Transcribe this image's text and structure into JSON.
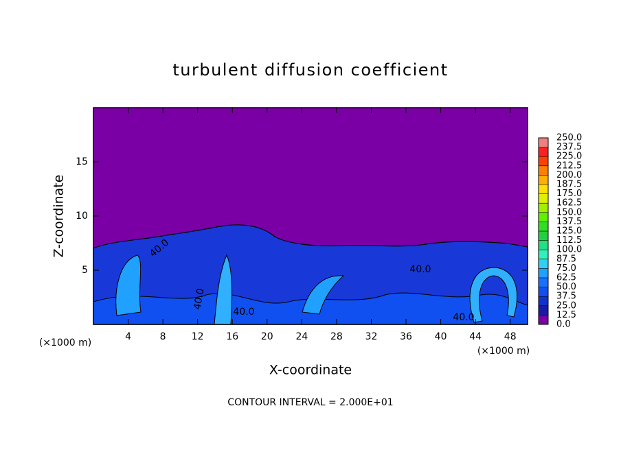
{
  "chart_data": {
    "type": "contour",
    "title": "turbulent diffusion coefficient",
    "x_label": "X-coordinate",
    "y_label": "Z-coordinate",
    "x_unit": "(×1000 m)",
    "x_unit_right": "(×1000 m)",
    "footer": "CONTOUR INTERVAL = 2.000E+01",
    "contour_labels": [
      "40.0",
      "40.0",
      "40.0",
      "40.0",
      "40.0"
    ],
    "xlim": [
      0,
      50
    ],
    "ylim": [
      0,
      20
    ],
    "xticks": [
      4,
      8,
      12,
      16,
      20,
      24,
      28,
      32,
      36,
      40,
      44,
      48
    ],
    "yticks": [
      5,
      10,
      15
    ],
    "levels": [
      {
        "value": 0,
        "label": "0.0"
      },
      {
        "value": 12.5,
        "label": "12.5"
      },
      {
        "value": 25,
        "label": "25.0"
      },
      {
        "value": 37.5,
        "label": "37.5"
      },
      {
        "value": 50,
        "label": "50.0"
      },
      {
        "value": 62.5,
        "label": "62.5"
      },
      {
        "value": 75,
        "label": "75.0"
      },
      {
        "value": 87.5,
        "label": "87.5"
      },
      {
        "value": 100,
        "label": "100.0"
      },
      {
        "value": 112.5,
        "label": "112.5"
      },
      {
        "value": 125,
        "label": "125.0"
      },
      {
        "value": 137.5,
        "label": "137.5"
      },
      {
        "value": 150,
        "label": "150.0"
      },
      {
        "value": 162.5,
        "label": "162.5"
      },
      {
        "value": 175,
        "label": "175.0"
      },
      {
        "value": 187.5,
        "label": "187.5"
      },
      {
        "value": 200,
        "label": "200.0"
      },
      {
        "value": 212.5,
        "label": "212.5"
      },
      {
        "value": 225,
        "label": "225.0"
      },
      {
        "value": 237.5,
        "label": "237.5"
      },
      {
        "value": 250,
        "label": "250.0"
      }
    ],
    "colors": [
      "#7a00a6",
      "#1a1aa8",
      "#1030d0",
      "#1050f0",
      "#1870ff",
      "#20a0ff",
      "#30d0f0",
      "#30f0c0",
      "#20e080",
      "#20d040",
      "#30e020",
      "#60f000",
      "#a0f000",
      "#e0f000",
      "#ffe000",
      "#ffb000",
      "#ff8000",
      "#ff4000",
      "#ff2020",
      "#f08080"
    ]
  }
}
